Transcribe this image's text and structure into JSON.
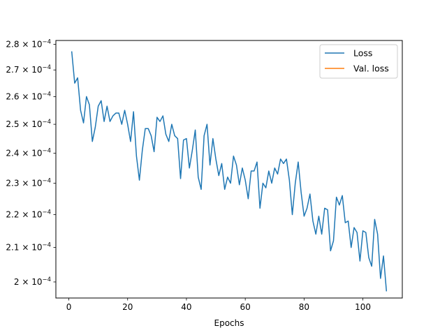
{
  "chart_data": {
    "type": "line",
    "xlabel": "Epochs",
    "ylabel": "",
    "xlim": [
      -4.4,
      113.4
    ],
    "ylim": [
      0.0001955,
      0.0002815
    ],
    "y_scale": "log",
    "grid": false,
    "legend_position": "top-right",
    "x_ticks": [
      0,
      20,
      40,
      60,
      80,
      100
    ],
    "x_tick_labels": [
      "0",
      "20",
      "40",
      "60",
      "80",
      "100"
    ],
    "y_ticks": [
      0.0002,
      0.00021,
      0.00022,
      0.00023,
      0.00024,
      0.00025,
      0.00026,
      0.00027,
      0.00028
    ],
    "y_tick_labels": [
      {
        "mantissa": "2",
        "exponent": "−4"
      },
      {
        "mantissa": "2.1",
        "exponent": "−4"
      },
      {
        "mantissa": "2.2",
        "exponent": "−4"
      },
      {
        "mantissa": "2.3",
        "exponent": "−4"
      },
      {
        "mantissa": "2.4",
        "exponent": "−4"
      },
      {
        "mantissa": "2.5",
        "exponent": "−4"
      },
      {
        "mantissa": "2.6",
        "exponent": "−4"
      },
      {
        "mantissa": "2.7",
        "exponent": "−4"
      },
      {
        "mantissa": "2.8",
        "exponent": "−4"
      }
    ],
    "y_tick_base": "× 10",
    "series": [
      {
        "name": "Loss",
        "color": "#1f77b4",
        "x": [
          1,
          2,
          3,
          4,
          5,
          6,
          7,
          8,
          9,
          10,
          11,
          12,
          13,
          14,
          15,
          16,
          17,
          18,
          19,
          20,
          21,
          22,
          23,
          24,
          25,
          26,
          27,
          28,
          29,
          30,
          31,
          32,
          33,
          34,
          35,
          36,
          37,
          38,
          39,
          40,
          41,
          42,
          43,
          44,
          45,
          46,
          47,
          48,
          49,
          50,
          51,
          52,
          53,
          54,
          55,
          56,
          57,
          58,
          59,
          60,
          61,
          62,
          63,
          64,
          65,
          66,
          67,
          68,
          69,
          70,
          71,
          72,
          73,
          74,
          75,
          76,
          77,
          78,
          79,
          80,
          81,
          82,
          83,
          84,
          85,
          86,
          87,
          88,
          89,
          90,
          91,
          92,
          93,
          94,
          95,
          96,
          97,
          98,
          99,
          100,
          101,
          102,
          103,
          104,
          105,
          106,
          107,
          108
        ],
        "values": [
          0.000277,
          0.000265,
          0.000267,
          0.000255,
          0.0002505,
          0.00026,
          0.000257,
          0.000244,
          0.000249,
          0.0002565,
          0.0002585,
          0.000251,
          0.0002565,
          0.000251,
          0.000253,
          0.000254,
          0.000254,
          0.00025,
          0.000255,
          0.00025,
          0.000244,
          0.0002545,
          0.000239,
          0.000231,
          0.000241,
          0.0002485,
          0.0002485,
          0.000246,
          0.0002405,
          0.0002525,
          0.000251,
          0.000253,
          0.0002465,
          0.000244,
          0.00025,
          0.000246,
          0.000245,
          0.0002315,
          0.0002445,
          0.000245,
          0.000235,
          0.000241,
          0.000248,
          0.000232,
          0.000228,
          0.000246,
          0.00025,
          0.000236,
          0.000245,
          0.000238,
          0.0002325,
          0.0002365,
          0.000228,
          0.000232,
          0.00023,
          0.000239,
          0.000236,
          0.0002295,
          0.000235,
          0.000231,
          0.000225,
          0.000234,
          0.000234,
          0.000237,
          0.000222,
          0.00023,
          0.0002285,
          0.000234,
          0.00023,
          0.000235,
          0.000233,
          0.000238,
          0.0002365,
          0.000238,
          0.000231,
          0.00022,
          0.00023,
          0.000237,
          0.000227,
          0.0002195,
          0.000222,
          0.0002265,
          0.000218,
          0.000214,
          0.0002195,
          0.000214,
          0.000222,
          0.0002215,
          0.000209,
          0.000212,
          0.0002255,
          0.000223,
          0.000226,
          0.0002175,
          0.000218,
          0.00021,
          0.000216,
          0.0002145,
          0.000206,
          0.000215,
          0.0002145,
          0.000207,
          0.0002045,
          0.0002185,
          0.000214,
          0.000201,
          0.0002075,
          0.0001975
        ]
      },
      {
        "name": "Val. loss",
        "color": "#ff7f0e",
        "x": [],
        "values": []
      }
    ]
  }
}
